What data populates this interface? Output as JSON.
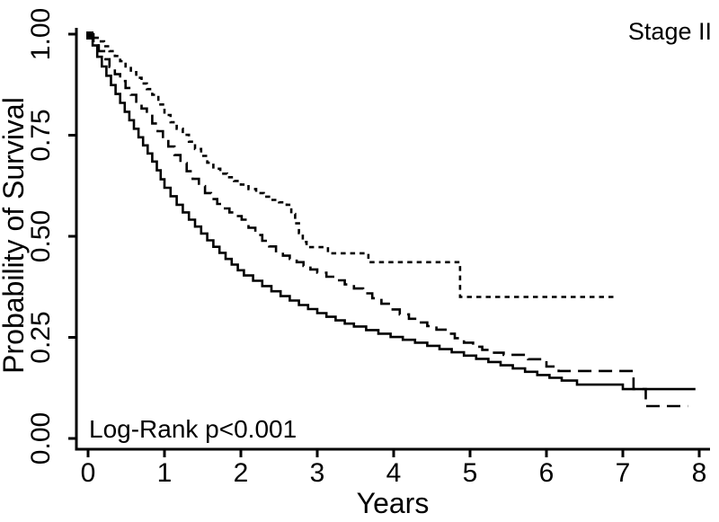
{
  "chart_data": {
    "type": "line",
    "subtype": "kaplan-meier-step",
    "annotations": {
      "top_right": "Stage II",
      "bottom_left": "Log-Rank p<0.001"
    },
    "xlabel": "Years",
    "ylabel": "Probability of Survival",
    "xlim": [
      0,
      8
    ],
    "ylim": [
      0.0,
      1.0
    ],
    "x_ticks": [
      "0",
      "1",
      "2",
      "3",
      "4",
      "5",
      "6",
      "7",
      "8"
    ],
    "y_ticks": [
      "0.00",
      "0.25",
      "0.50",
      "0.75",
      "1.00"
    ],
    "grid": false,
    "legend": "none",
    "colors": {
      "line": "#000000",
      "background": "#ffffff"
    },
    "series": [
      {
        "name": "solid",
        "line_style": "solid",
        "points": [
          [
            0,
            1.0
          ],
          [
            0.06,
            0.972
          ],
          [
            0.12,
            0.944
          ],
          [
            0.18,
            0.92
          ],
          [
            0.24,
            0.897
          ],
          [
            0.3,
            0.874
          ],
          [
            0.36,
            0.852
          ],
          [
            0.42,
            0.83
          ],
          [
            0.48,
            0.808
          ],
          [
            0.54,
            0.787
          ],
          [
            0.6,
            0.766
          ],
          [
            0.66,
            0.745
          ],
          [
            0.72,
            0.725
          ],
          [
            0.78,
            0.705
          ],
          [
            0.84,
            0.685
          ],
          [
            0.9,
            0.663
          ],
          [
            0.95,
            0.641
          ],
          [
            1.0,
            0.62
          ],
          [
            1.08,
            0.599
          ],
          [
            1.16,
            0.578
          ],
          [
            1.24,
            0.559
          ],
          [
            1.32,
            0.541
          ],
          [
            1.4,
            0.524
          ],
          [
            1.48,
            0.507
          ],
          [
            1.56,
            0.49
          ],
          [
            1.64,
            0.474
          ],
          [
            1.72,
            0.459
          ],
          [
            1.8,
            0.444
          ],
          [
            1.88,
            0.43
          ],
          [
            1.96,
            0.416
          ],
          [
            2.04,
            0.403
          ],
          [
            2.16,
            0.39
          ],
          [
            2.28,
            0.377
          ],
          [
            2.4,
            0.364
          ],
          [
            2.52,
            0.352
          ],
          [
            2.64,
            0.341
          ],
          [
            2.76,
            0.33
          ],
          [
            2.88,
            0.32
          ],
          [
            3.0,
            0.31
          ],
          [
            3.12,
            0.301
          ],
          [
            3.24,
            0.292
          ],
          [
            3.36,
            0.284
          ],
          [
            3.48,
            0.277
          ],
          [
            3.64,
            0.268
          ],
          [
            3.8,
            0.259
          ],
          [
            3.96,
            0.251
          ],
          [
            4.12,
            0.244
          ],
          [
            4.28,
            0.237
          ],
          [
            4.44,
            0.229
          ],
          [
            4.6,
            0.221
          ],
          [
            4.76,
            0.213
          ],
          [
            4.92,
            0.205
          ],
          [
            5.08,
            0.197
          ],
          [
            5.24,
            0.189
          ],
          [
            5.4,
            0.181
          ],
          [
            5.56,
            0.173
          ],
          [
            5.72,
            0.165
          ],
          [
            5.88,
            0.157
          ],
          [
            6.04,
            0.15
          ],
          [
            6.2,
            0.143
          ],
          [
            6.4,
            0.133
          ],
          [
            7.0,
            0.122
          ],
          [
            7.95,
            0.122
          ]
        ]
      },
      {
        "name": "long-dash",
        "line_style": "long-dash",
        "points": [
          [
            0,
            1.0
          ],
          [
            0.07,
            0.979
          ],
          [
            0.14,
            0.958
          ],
          [
            0.21,
            0.938
          ],
          [
            0.28,
            0.919
          ],
          [
            0.35,
            0.901
          ],
          [
            0.42,
            0.884
          ],
          [
            0.49,
            0.867
          ],
          [
            0.56,
            0.85
          ],
          [
            0.63,
            0.833
          ],
          [
            0.7,
            0.816
          ],
          [
            0.77,
            0.798
          ],
          [
            0.84,
            0.779
          ],
          [
            0.91,
            0.76
          ],
          [
            0.98,
            0.741
          ],
          [
            1.05,
            0.722
          ],
          [
            1.13,
            0.701
          ],
          [
            1.21,
            0.681
          ],
          [
            1.29,
            0.661
          ],
          [
            1.37,
            0.642
          ],
          [
            1.45,
            0.624
          ],
          [
            1.53,
            0.607
          ],
          [
            1.61,
            0.592
          ],
          [
            1.69,
            0.58
          ],
          [
            1.77,
            0.569
          ],
          [
            1.85,
            0.559
          ],
          [
            1.93,
            0.55
          ],
          [
            2.01,
            0.541
          ],
          [
            2.1,
            0.521
          ],
          [
            2.19,
            0.503
          ],
          [
            2.28,
            0.489
          ],
          [
            2.37,
            0.475
          ],
          [
            2.46,
            0.463
          ],
          [
            2.55,
            0.452
          ],
          [
            2.64,
            0.444
          ],
          [
            2.73,
            0.436
          ],
          [
            2.82,
            0.427
          ],
          [
            2.91,
            0.418
          ],
          [
            3.0,
            0.41
          ],
          [
            3.12,
            0.4
          ],
          [
            3.24,
            0.391
          ],
          [
            3.36,
            0.381
          ],
          [
            3.48,
            0.371
          ],
          [
            3.6,
            0.359
          ],
          [
            3.72,
            0.347
          ],
          [
            3.84,
            0.333
          ],
          [
            3.96,
            0.319
          ],
          [
            4.08,
            0.307
          ],
          [
            4.2,
            0.296
          ],
          [
            4.32,
            0.287
          ],
          [
            4.44,
            0.278
          ],
          [
            4.56,
            0.269
          ],
          [
            4.68,
            0.259
          ],
          [
            4.8,
            0.248
          ],
          [
            4.92,
            0.237
          ],
          [
            5.04,
            0.227
          ],
          [
            5.16,
            0.219
          ],
          [
            5.28,
            0.212
          ],
          [
            5.44,
            0.207
          ],
          [
            5.76,
            0.196
          ],
          [
            6.0,
            0.178
          ],
          [
            6.16,
            0.167
          ],
          [
            7.14,
            0.122
          ],
          [
            7.3,
            0.08
          ],
          [
            7.85,
            0.08
          ]
        ]
      },
      {
        "name": "short-dash",
        "line_style": "short-dash",
        "points": [
          [
            0,
            1.0
          ],
          [
            0.07,
            0.991
          ],
          [
            0.14,
            0.982
          ],
          [
            0.21,
            0.97
          ],
          [
            0.28,
            0.958
          ],
          [
            0.35,
            0.946
          ],
          [
            0.42,
            0.933
          ],
          [
            0.49,
            0.92
          ],
          [
            0.56,
            0.906
          ],
          [
            0.63,
            0.892
          ],
          [
            0.7,
            0.878
          ],
          [
            0.77,
            0.864
          ],
          [
            0.84,
            0.85
          ],
          [
            0.92,
            0.826
          ],
          [
            1.0,
            0.8
          ],
          [
            1.08,
            0.782
          ],
          [
            1.16,
            0.766
          ],
          [
            1.24,
            0.751
          ],
          [
            1.32,
            0.734
          ],
          [
            1.4,
            0.716
          ],
          [
            1.48,
            0.699
          ],
          [
            1.56,
            0.682
          ],
          [
            1.64,
            0.667
          ],
          [
            1.73,
            0.655
          ],
          [
            1.82,
            0.646
          ],
          [
            1.91,
            0.637
          ],
          [
            2.0,
            0.628
          ],
          [
            2.1,
            0.617
          ],
          [
            2.2,
            0.607
          ],
          [
            2.3,
            0.598
          ],
          [
            2.4,
            0.59
          ],
          [
            2.5,
            0.584
          ],
          [
            2.6,
            0.578
          ],
          [
            2.66,
            0.555
          ],
          [
            2.71,
            0.532
          ],
          [
            2.76,
            0.508
          ],
          [
            2.81,
            0.486
          ],
          [
            2.86,
            0.473
          ],
          [
            3.14,
            0.458
          ],
          [
            3.67,
            0.436
          ],
          [
            4.87,
            0.35
          ],
          [
            6.88,
            0.35
          ]
        ]
      }
    ]
  }
}
